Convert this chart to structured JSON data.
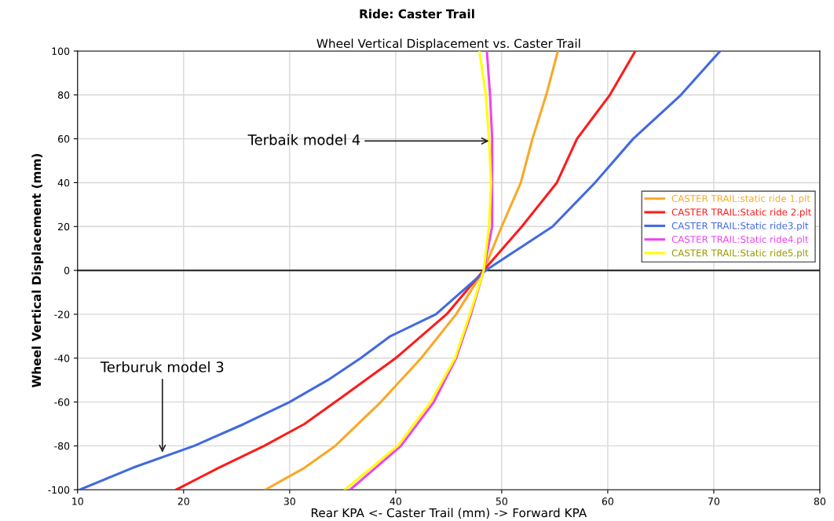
{
  "chart_data": {
    "type": "line",
    "title": "Ride: Caster Trail",
    "subtitle": "Wheel Vertical Displacement vs. Caster Trail",
    "xlabel": "Rear KPA <- Caster Trail (mm) -> Forward KPA",
    "ylabel": "Wheel Vertical Displacement (mm)",
    "xlim": [
      10,
      80
    ],
    "xticks": [
      10,
      20,
      30,
      40,
      50,
      60,
      70,
      80
    ],
    "ylim": [
      -100,
      100
    ],
    "yticks": [
      -100,
      -80,
      -60,
      -40,
      -20,
      0,
      20,
      40,
      60,
      80,
      100
    ],
    "grid": true,
    "legend": "right",
    "marker": "none",
    "line_style": "solid",
    "ref_lines": [
      {
        "axis": "y",
        "value": 0,
        "color": "#333333"
      }
    ],
    "annotations": [
      {
        "text": "Terbaik model 4",
        "x": 49,
        "y": 59
      },
      {
        "text": "Terburuk model 3",
        "x": 18,
        "y": -84
      }
    ],
    "series": [
      {
        "name": "CASTER TRAIL:static ride 1.plt",
        "color": "#f9a825",
        "x": [
          27.7,
          31.4,
          34.3,
          38.6,
          42.4,
          45.7,
          48.3,
          50,
          51.8,
          52.9,
          54.2,
          55.3
        ],
        "values": [
          -100,
          -90,
          -80,
          -60,
          -40,
          -20,
          0,
          20,
          40,
          60,
          80,
          100
        ]
      },
      {
        "name": "CASTER TRAIL:Static ride 2.plt",
        "color": "#ff1a1a",
        "x": [
          19.3,
          23.3,
          27.6,
          31.4,
          34.3,
          40,
          44.8,
          48.3,
          51.9,
          55.2,
          57.1,
          60.2,
          62.6
        ],
        "values": [
          -100,
          -90,
          -80,
          -70,
          -60,
          -40,
          -20,
          0,
          20,
          40,
          60,
          80,
          100
        ]
      },
      {
        "name": "CASTER TRAIL:Static ride3.plt",
        "color": "#4169e1",
        "x": [
          10.2,
          15.2,
          21,
          25.7,
          30,
          33.6,
          36.7,
          39.5,
          43.8,
          48.5,
          54.8,
          58.8,
          62.4,
          66.9,
          70.6
        ],
        "values": [
          -100,
          -90,
          -80,
          -70,
          -60,
          -50,
          -40,
          -30,
          -20,
          0,
          20,
          40,
          60,
          80,
          100
        ]
      },
      {
        "name": "CASTER TRAIL:Static ride4.plt",
        "color": "#ee44ee",
        "x": [
          35.7,
          38.1,
          40.5,
          43.6,
          45.7,
          47.1,
          48.3,
          49.1,
          49.1,
          49.1,
          48.9,
          48.6
        ],
        "values": [
          -100,
          -90,
          -80,
          -60,
          -40,
          -20,
          0,
          20,
          40,
          60,
          80,
          100
        ]
      },
      {
        "name": "CASTER TRAIL:Static ride5.plt",
        "color": "#ffff00",
        "x": [
          35.2,
          37.7,
          40.2,
          43.3,
          45.6,
          47,
          48.3,
          48.8,
          49,
          48.8,
          48.5,
          47.9
        ],
        "values": [
          -100,
          -90,
          -80,
          -60,
          -40,
          -20,
          0,
          20,
          40,
          60,
          80,
          100
        ]
      }
    ]
  }
}
